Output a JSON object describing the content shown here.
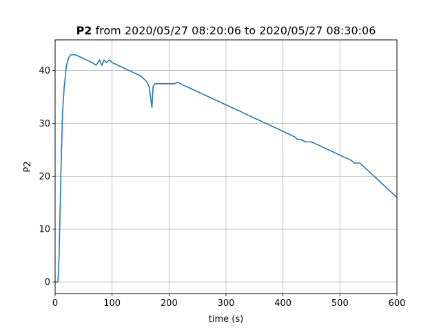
{
  "chart_data": {
    "type": "line",
    "title_bold": "P2",
    "title_rest": " from 2020/05/27 08:20:06 to 2020/05/27 08:30:06",
    "xlabel": "time (s)",
    "ylabel": "P2",
    "xlim": [
      0,
      600
    ],
    "ylim": [
      -2.2,
      45.8
    ],
    "xticks": [
      0,
      100,
      200,
      300,
      400,
      500,
      600
    ],
    "yticks": [
      0,
      10,
      20,
      30,
      40
    ],
    "grid": true,
    "line_color": "#1f77b4",
    "series": [
      {
        "x": [
          0,
          5,
          7,
          10,
          13,
          16,
          20,
          24,
          28,
          35,
          45,
          55,
          65,
          72,
          78,
          82,
          86,
          90,
          95,
          100,
          110,
          120,
          130,
          140,
          150,
          160,
          165,
          170,
          172,
          175,
          180,
          190,
          200,
          210,
          215,
          220,
          225,
          230,
          240,
          250,
          260,
          270,
          280,
          290,
          300,
          310,
          320,
          325,
          330,
          340,
          350,
          360,
          370,
          380,
          390,
          400,
          410,
          420,
          425,
          430,
          440,
          450,
          460,
          470,
          480,
          490,
          500,
          510,
          520,
          525,
          530,
          535,
          540,
          545,
          550,
          555,
          560,
          565,
          570,
          575,
          580,
          585,
          590,
          595,
          600
        ],
        "y": [
          0,
          0,
          5,
          20,
          32,
          37,
          41,
          42.5,
          43,
          43,
          42.5,
          42,
          41.5,
          41,
          42,
          41,
          42,
          41.5,
          42,
          41.5,
          41,
          40.5,
          40,
          39.5,
          39,
          38,
          37,
          33,
          37,
          37.5,
          37.5,
          37.5,
          37.5,
          37.5,
          37.8,
          37.5,
          37.2,
          37,
          36.5,
          36,
          35.5,
          35,
          34.5,
          34,
          33.5,
          33,
          32.5,
          32.3,
          32,
          31.5,
          31,
          30.5,
          30,
          29.5,
          29,
          28.5,
          28,
          27.5,
          27,
          27,
          26.5,
          26.5,
          26,
          25.5,
          25,
          24.5,
          24,
          23.5,
          23,
          22.5,
          22.5,
          22.5,
          22,
          21.5,
          21,
          20.5,
          20,
          19.5,
          19,
          18.5,
          18,
          17.5,
          17,
          16.5,
          16
        ]
      }
    ]
  }
}
